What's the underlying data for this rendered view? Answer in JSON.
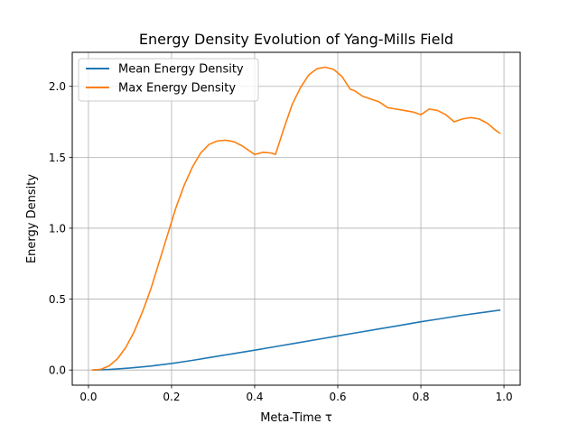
{
  "chart_data": {
    "type": "line",
    "title": "Energy Density Evolution of Yang-Mills Field",
    "xlabel": "Meta-Time τ",
    "ylabel": "Energy Density",
    "xlim": [
      -0.039,
      1.039
    ],
    "ylim": [
      -0.107,
      2.24
    ],
    "xticks": [
      0.0,
      0.2,
      0.4,
      0.6,
      0.8,
      1.0
    ],
    "xtick_labels": [
      "0.0",
      "0.2",
      "0.4",
      "0.6",
      "0.8",
      "1.0"
    ],
    "yticks": [
      0.0,
      0.5,
      1.0,
      1.5,
      2.0
    ],
    "ytick_labels": [
      "0.0",
      "0.5",
      "1.0",
      "1.5",
      "2.0"
    ],
    "grid": true,
    "legend_position": "top-left",
    "series": [
      {
        "name": "Mean Energy Density",
        "color": "#1f77b4",
        "x": [
          0.01,
          0.05,
          0.1,
          0.15,
          0.2,
          0.25,
          0.3,
          0.35,
          0.4,
          0.45,
          0.5,
          0.55,
          0.6,
          0.65,
          0.7,
          0.75,
          0.8,
          0.85,
          0.9,
          0.95,
          0.99
        ],
        "values": [
          0.0,
          0.004,
          0.014,
          0.028,
          0.046,
          0.068,
          0.092,
          0.116,
          0.14,
          0.165,
          0.19,
          0.215,
          0.24,
          0.265,
          0.29,
          0.315,
          0.34,
          0.363,
          0.386,
          0.406,
          0.422
        ]
      },
      {
        "name": "Max Energy Density",
        "color": "#ff7f0e",
        "x": [
          0.01,
          0.03,
          0.05,
          0.07,
          0.09,
          0.11,
          0.13,
          0.15,
          0.17,
          0.19,
          0.21,
          0.23,
          0.25,
          0.27,
          0.29,
          0.31,
          0.33,
          0.35,
          0.37,
          0.39,
          0.4,
          0.42,
          0.44,
          0.45,
          0.47,
          0.49,
          0.51,
          0.53,
          0.55,
          0.57,
          0.59,
          0.61,
          0.63,
          0.64,
          0.66,
          0.68,
          0.7,
          0.72,
          0.74,
          0.76,
          0.78,
          0.8,
          0.82,
          0.84,
          0.86,
          0.88,
          0.9,
          0.92,
          0.94,
          0.96,
          0.98,
          0.99
        ],
        "values": [
          0.0,
          0.005,
          0.03,
          0.08,
          0.16,
          0.27,
          0.41,
          0.57,
          0.76,
          0.95,
          1.14,
          1.3,
          1.43,
          1.53,
          1.59,
          1.615,
          1.62,
          1.61,
          1.58,
          1.54,
          1.52,
          1.535,
          1.53,
          1.52,
          1.7,
          1.87,
          1.99,
          2.08,
          2.125,
          2.135,
          2.12,
          2.07,
          1.98,
          1.97,
          1.93,
          1.91,
          1.89,
          1.85,
          1.84,
          1.83,
          1.82,
          1.8,
          1.84,
          1.83,
          1.8,
          1.75,
          1.77,
          1.78,
          1.77,
          1.74,
          1.69,
          1.67
        ]
      }
    ]
  }
}
